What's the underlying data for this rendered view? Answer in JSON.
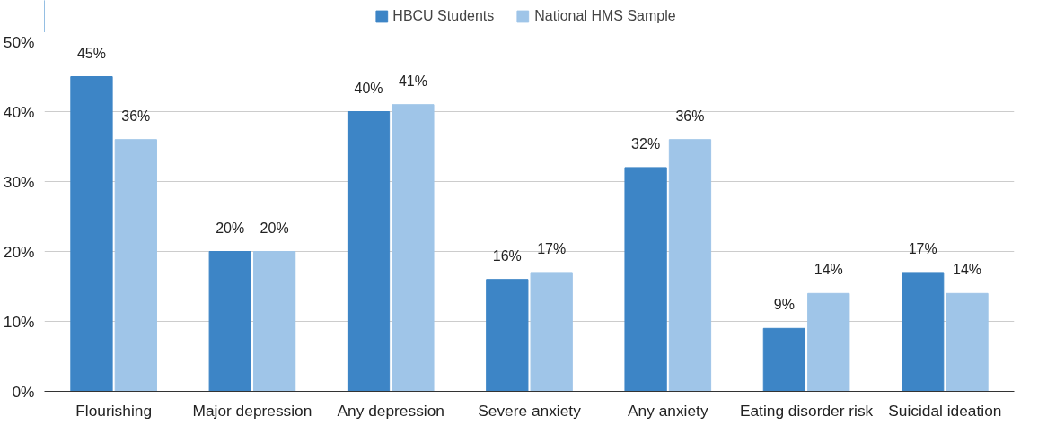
{
  "chart_data": {
    "type": "bar",
    "categories": [
      "Flourishing",
      "Major depression",
      "Any depression",
      "Severe anxiety",
      "Any anxiety",
      "Eating disorder risk",
      "Suicidal ideation"
    ],
    "series": [
      {
        "name": "HBCU Students",
        "color": "#3d85c6",
        "values": [
          45,
          20,
          40,
          16,
          32,
          9,
          17
        ],
        "value_labels": [
          "45%",
          "20%",
          "40%",
          "16%",
          "32%",
          "9%",
          "17%"
        ]
      },
      {
        "name": "National HMS Sample",
        "color": "#9fc5e8",
        "values": [
          36,
          20,
          41,
          17,
          36,
          14,
          14
        ],
        "value_labels": [
          "36%",
          "20%",
          "41%",
          "17%",
          "36%",
          "14%",
          "14%"
        ]
      }
    ],
    "ylim": [
      0,
      50
    ],
    "yticks": [
      {
        "value": 0,
        "label": "0%"
      },
      {
        "value": 10,
        "label": "10%"
      },
      {
        "value": 20,
        "label": "20%"
      },
      {
        "value": 30,
        "label": "30%"
      },
      {
        "value": 40,
        "label": "40%"
      },
      {
        "value": 50,
        "label": "50%"
      }
    ],
    "grid": "y",
    "legend": "top"
  }
}
